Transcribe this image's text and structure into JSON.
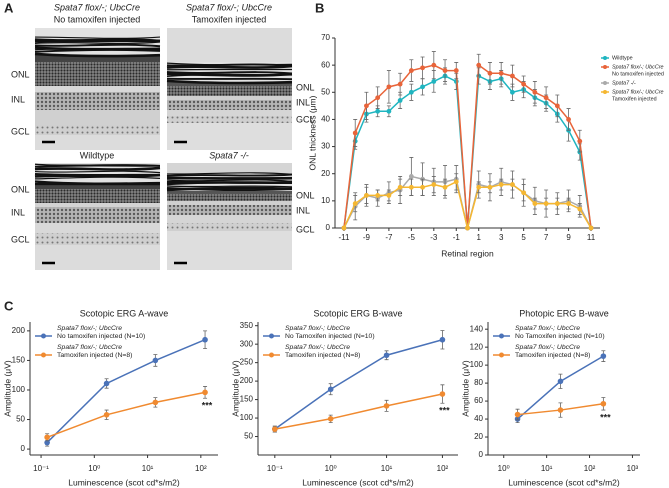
{
  "panel_labels": {
    "a": "A",
    "b": "B",
    "c": "C"
  },
  "histology": {
    "layers": [
      "ONL",
      "INL",
      "GCL"
    ],
    "images": [
      {
        "genotype": "Spata7 flox/-; UbcCre",
        "treatment": "No tamoxifen injected"
      },
      {
        "genotype": "Spata7 flox/-; UbcCre",
        "treatment": "Tamoxifen injected"
      },
      {
        "genotype": "Wildtype"
      },
      {
        "genotype": "Spata7 -/-"
      }
    ]
  },
  "chart_data": [
    {
      "type": "line",
      "xlabel": "Retinal region",
      "ylabel": "ONL thickness (μm)",
      "x": [
        -11,
        -10,
        -9,
        -8,
        -7,
        -6,
        -5,
        -4,
        -3,
        -2,
        -1,
        0,
        1,
        2,
        3,
        4,
        5,
        6,
        7,
        8,
        9,
        10,
        11
      ],
      "xlim": [
        -11.8,
        11.8
      ],
      "xticks": [
        -11,
        -9,
        -7,
        -5,
        -3,
        -1,
        1,
        3,
        5,
        7,
        9,
        11
      ],
      "ylim": [
        0,
        70
      ],
      "yticks": [
        0,
        10,
        20,
        30,
        40,
        50,
        60,
        70
      ],
      "legend": "right",
      "series": [
        {
          "name": "Wildtype",
          "color": "#1fb5c0",
          "values": [
            0,
            32,
            42,
            43,
            43,
            47,
            50,
            52,
            54,
            56,
            54,
            0,
            56,
            54,
            55,
            50,
            51,
            48,
            46,
            42,
            36,
            28,
            0
          ],
          "errors": [
            null,
            3,
            3,
            2,
            2,
            3,
            3,
            3,
            4,
            3,
            3,
            null,
            3,
            3,
            3,
            3,
            3,
            3,
            3,
            3,
            4,
            3,
            null
          ]
        },
        {
          "name": "Spata7 flox/-; UbcCre",
          "treatment": "No tamoxifen injected",
          "color": "#e8643a",
          "values": [
            0,
            35,
            45,
            48,
            52,
            53,
            58,
            59,
            60,
            58,
            58,
            0,
            60,
            57,
            57,
            56,
            53,
            50,
            48,
            45,
            40,
            32,
            0
          ],
          "errors": [
            null,
            5,
            5,
            4,
            6,
            4,
            4,
            4,
            5,
            4,
            3,
            null,
            4,
            4,
            4,
            4,
            3,
            4,
            4,
            4,
            4,
            4,
            null
          ]
        },
        {
          "name": "Spata7 -/-",
          "color": "#aaaaaa",
          "values": [
            0,
            8,
            12,
            11,
            13,
            14,
            19,
            18,
            17,
            17,
            18,
            0,
            16,
            15,
            17,
            16,
            13,
            10,
            9,
            9,
            10,
            8,
            0
          ],
          "errors": [
            null,
            5,
            4,
            3,
            4,
            5,
            7,
            6,
            5,
            6,
            5,
            null,
            5,
            5,
            5,
            5,
            5,
            5,
            5,
            4,
            4,
            4,
            null
          ]
        },
        {
          "name": "Spata7 flox/-; UbcCre",
          "treatment": "Tamoxifen injected",
          "color": "#f5b731",
          "values": [
            0,
            9,
            12,
            12,
            12,
            15,
            15,
            15,
            16,
            15,
            17,
            0,
            15,
            15,
            16,
            16,
            13,
            9,
            9,
            9,
            9,
            7,
            0
          ],
          "errors": [
            null,
            3,
            3,
            2,
            2,
            3,
            3,
            3,
            3,
            3,
            3,
            null,
            2,
            2,
            2,
            2,
            3,
            2,
            2,
            2,
            2,
            2,
            null
          ]
        }
      ]
    },
    {
      "type": "line",
      "title": "Scotopic ERG A-wave",
      "xlabel": "Luminescence (scot cd*s/m2)",
      "ylabel": "Amplitude (μV)",
      "xscale": "log",
      "x": [
        0.13,
        1.7,
        14,
        120
      ],
      "xlim": [
        0.062,
        210
      ],
      "xticks": [
        {
          "value": 0.1,
          "label": "10⁻¹"
        },
        {
          "value": 1,
          "label": "10⁰"
        },
        {
          "value": 10,
          "label": "10¹"
        },
        {
          "value": 100,
          "label": "10²"
        }
      ],
      "ylim": [
        -10,
        215
      ],
      "yticks": [
        0,
        50,
        100,
        150,
        200
      ],
      "legend": "upper left",
      "annotation": "***",
      "series": [
        {
          "genotype": "Spata7 flox/-; UbcCre",
          "name": "No tamoxifen injected (N=10)",
          "color": "#4a72b8",
          "values": [
            11,
            111,
            150,
            185
          ],
          "errors": [
            6,
            8,
            10,
            15
          ]
        },
        {
          "genotype": "Spata7 flox/-; UbcCre",
          "name": "Tamoxifen injected (N=8)",
          "color": "#f08a30",
          "values": [
            20,
            58,
            79,
            96
          ],
          "errors": [
            6,
            8,
            8,
            10
          ]
        }
      ]
    },
    {
      "type": "line",
      "title": "Scotopic ERG B-wave",
      "xlabel": "Luminescence (scot cd*s/m2)",
      "ylabel": "Amplitude (μV)",
      "xscale": "log",
      "x": [
        0.1,
        1,
        10,
        100
      ],
      "xlim": [
        0.05,
        190
      ],
      "xticks": [
        {
          "value": 0.1,
          "label": "10⁻¹"
        },
        {
          "value": 1,
          "label": "10⁰"
        },
        {
          "value": 10,
          "label": "10¹"
        },
        {
          "value": 100,
          "label": "10²"
        }
      ],
      "ylim": [
        0,
        360
      ],
      "yticks": [
        50,
        100,
        150,
        200,
        250,
        300,
        350
      ],
      "legend": "upper left",
      "annotation": "***",
      "series": [
        {
          "genotype": "Spata7 flox/-; UbcCre",
          "name": "No Tamoxifen injected (N=10)",
          "color": "#4a72b8",
          "values": [
            70,
            178,
            270,
            312
          ],
          "errors": [
            8,
            15,
            12,
            25
          ]
        },
        {
          "genotype": "Spata7 flox/-; UbcCre",
          "name": "Tamoxifen injected (N=8)",
          "color": "#f08a30",
          "values": [
            70,
            98,
            133,
            165
          ],
          "errors": [
            8,
            10,
            15,
            25
          ]
        }
      ]
    },
    {
      "type": "line",
      "title": "Photopic ERG B-wave",
      "xlabel": "Luminescence (scot cd*s/m2)",
      "ylabel": "Amplitude (μV)",
      "xscale": "log",
      "x": [
        2.1,
        21,
        210
      ],
      "xlim": [
        0.43,
        1500
      ],
      "xticks": [
        {
          "value": 1,
          "label": "10⁰"
        },
        {
          "value": 10,
          "label": "10¹"
        },
        {
          "value": 100,
          "label": "10²"
        },
        {
          "value": 1000,
          "label": "10³"
        }
      ],
      "ylim": [
        0,
        148
      ],
      "yticks": [
        0,
        20,
        40,
        60,
        80,
        100,
        120,
        140
      ],
      "legend": "upper left",
      "annotation": "***",
      "series": [
        {
          "genotype": "Spata7 flox/-; UbcCre",
          "name": "No Tamoxifen injected (N=10)",
          "color": "#4a72b8",
          "values": [
            40,
            82,
            110
          ],
          "errors": [
            4,
            8,
            6
          ]
        },
        {
          "genotype": "Spata7 flox/-; UbcCre",
          "name": "Tamoxifen injected (N=8)",
          "color": "#f08a30",
          "values": [
            45,
            50,
            57
          ],
          "errors": [
            6,
            8,
            7
          ]
        }
      ]
    }
  ]
}
